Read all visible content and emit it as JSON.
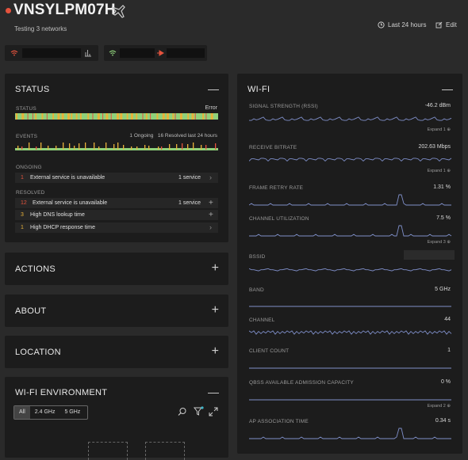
{
  "header": {
    "device_name": "VNSYLPM07H",
    "subtitle": "Testing 3 networks",
    "time_range": "Last 24 hours",
    "edit_label": "Edit"
  },
  "status_panel": {
    "title": "STATUS",
    "collapse_icon": "minus",
    "status_label": "STATUS",
    "status_value": "Error",
    "events_label": "EVENTS",
    "ongoing_count": "1",
    "ongoing_word": "Ongoing",
    "resolved_count": "16",
    "resolved_word": "Resolved last 24 hours",
    "ongoing_section": "ONGOING",
    "ongoing_items": [
      {
        "count": "1",
        "text": "External service is unavailable",
        "detail": "1 service",
        "action": "›",
        "color": "#e5533d"
      }
    ],
    "resolved_section": "RESOLVED",
    "resolved_items": [
      {
        "count": "12",
        "text": "External service is unavailable",
        "detail": "1 service",
        "action": "+",
        "color": "#e5533d"
      },
      {
        "count": "3",
        "text": "High DNS lookup time",
        "detail": "",
        "action": "+",
        "color": "#e8b23a"
      },
      {
        "count": "1",
        "text": "High DHCP response time",
        "detail": "",
        "action": "›",
        "color": "#e8b23a"
      }
    ]
  },
  "collapsed_panels": [
    {
      "title": "ACTIONS",
      "icon": "plus"
    },
    {
      "title": "ABOUT",
      "icon": "plus"
    },
    {
      "title": "LOCATION",
      "icon": "plus"
    }
  ],
  "wifi_env": {
    "title": "WI-FI ENVIRONMENT",
    "filters": [
      "All",
      "2.4 GHz",
      "5 GHz"
    ],
    "active_filter": "All"
  },
  "wifi": {
    "title": "WI-FI",
    "metrics": [
      {
        "label": "SIGNAL STRENGTH (RSSI)",
        "value": "-46.2 dBm",
        "expand": "Expand 1"
      },
      {
        "label": "RECEIVE BITRATE",
        "value": "202.63 Mbps",
        "expand": "Expand 1"
      },
      {
        "label": "FRAME RETRY RATE",
        "value": "1.31 %",
        "expand": ""
      },
      {
        "label": "CHANNEL UTILIZATION",
        "value": "7.5 %",
        "expand": "Expand 3"
      },
      {
        "label": "BSSID",
        "value": "",
        "expand": ""
      },
      {
        "label": "BAND",
        "value": "5 GHz",
        "expand": ""
      },
      {
        "label": "CHANNEL",
        "value": "44",
        "expand": ""
      },
      {
        "label": "CLIENT COUNT",
        "value": "1",
        "expand": ""
      },
      {
        "label": "QBSS AVAILABLE ADMISSION CAPACITY",
        "value": "0 %",
        "expand": "Expand 2"
      },
      {
        "label": "AP ASSOCIATION TIME",
        "value": "0.34 s",
        "expand": ""
      }
    ]
  },
  "colors": {
    "error": "#e5533d",
    "warning": "#e8b23a",
    "ok": "#8fd17a",
    "line": "#7f8fc9"
  }
}
